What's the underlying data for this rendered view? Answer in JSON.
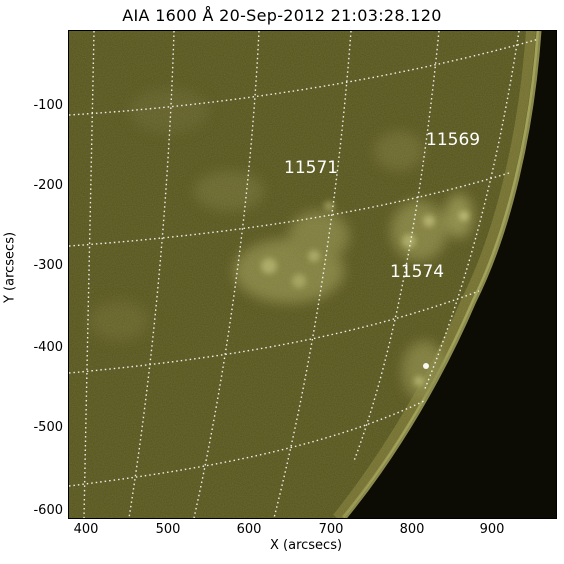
{
  "title": "AIA 1600 Å 20-Sep-2012 21:03:28.120",
  "xlabel": "X (arcsecs)",
  "ylabel": "Y (arcsecs)",
  "x_ticks": [
    "400",
    "500",
    "600",
    "700",
    "800",
    "900"
  ],
  "y_ticks": [
    "-100",
    "-200",
    "-300",
    "-400",
    "-500",
    "-600"
  ],
  "active_regions": [
    {
      "label": "11569"
    },
    {
      "label": "11571"
    },
    {
      "label": "11574"
    }
  ],
  "colors": {
    "disk": "#54521c",
    "limb_bright": "#cfcf7a",
    "space": "#0c0c04",
    "grid": "#ffffff",
    "plage": "#a9a864"
  }
}
